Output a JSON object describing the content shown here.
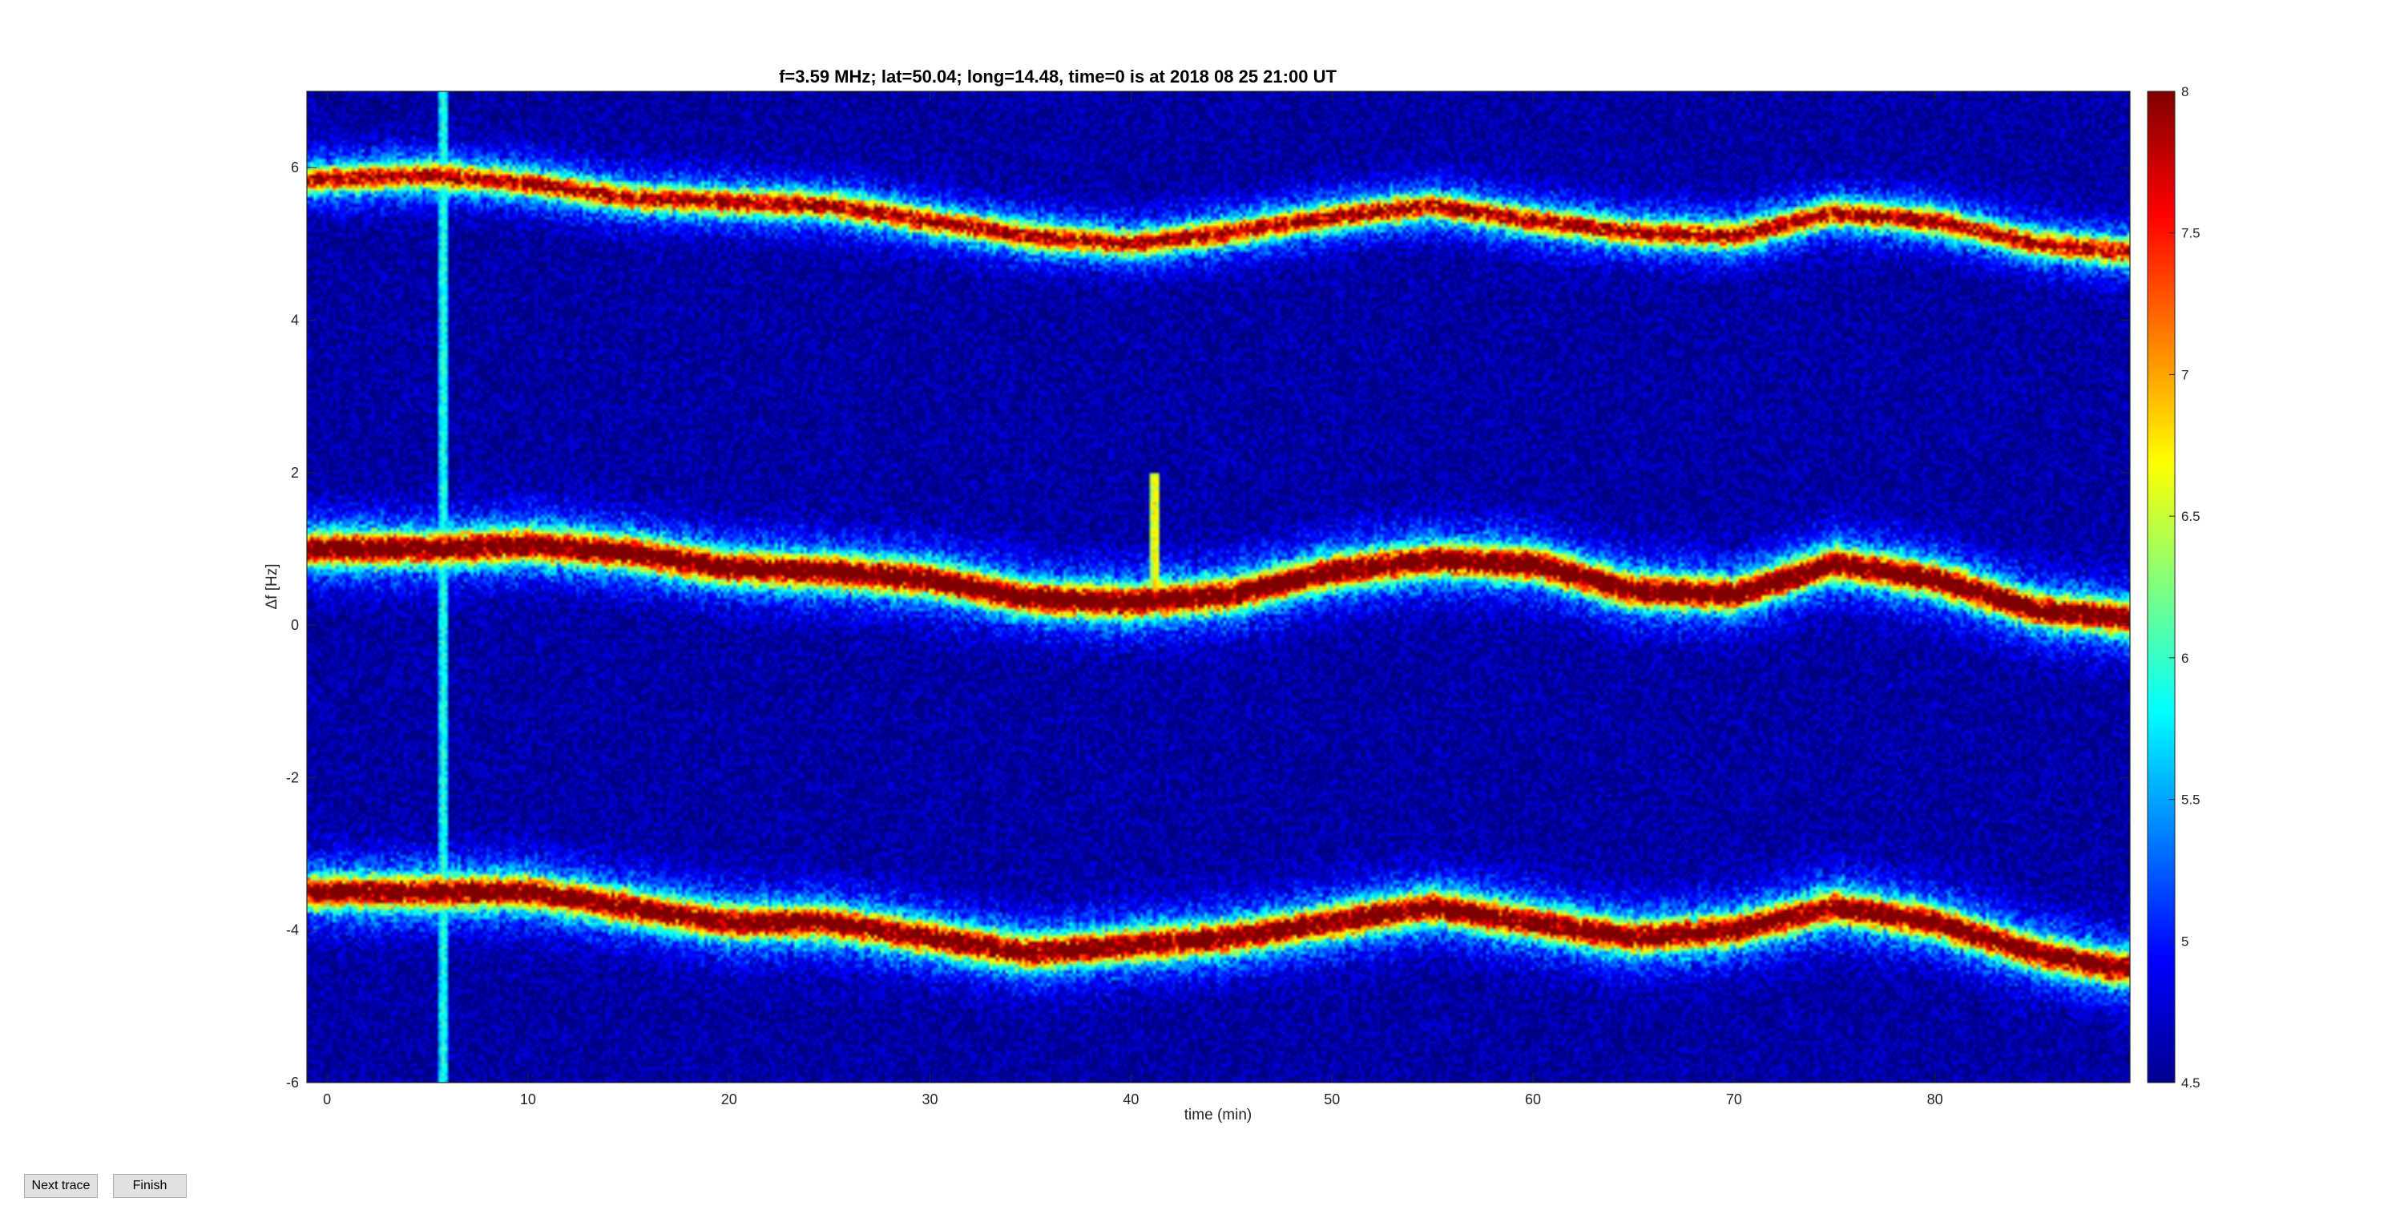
{
  "chart_data": {
    "type": "heatmap",
    "title": "f=3.59 MHz;  lat=50.04; long=14.48, time=0 is at 2018 08 25 21:00 UT",
    "xlabel": "time (min)",
    "ylabel": "Δf [Hz]",
    "xlim": [
      -1,
      89.7
    ],
    "ylim": [
      -6,
      7
    ],
    "xticks": [
      0,
      10,
      20,
      30,
      40,
      50,
      60,
      70,
      80
    ],
    "yticks": [
      -6,
      -4,
      -2,
      0,
      2,
      4,
      6
    ],
    "colorbar": {
      "range": [
        4.5,
        8
      ],
      "ticks": [
        4.5,
        5,
        5.5,
        6,
        6.5,
        7,
        7.5,
        8
      ],
      "colormap": "jet"
    },
    "background_level": 4.6,
    "traces": [
      {
        "time": [
          0,
          5,
          10,
          15,
          20,
          25,
          30,
          35,
          40,
          45,
          50,
          55,
          60,
          65,
          70,
          75,
          80,
          85,
          89
        ],
        "df": [
          5.85,
          5.9,
          5.8,
          5.6,
          5.55,
          5.5,
          5.3,
          5.1,
          5.0,
          5.15,
          5.35,
          5.5,
          5.3,
          5.15,
          5.1,
          5.4,
          5.3,
          5.0,
          4.9
        ],
        "peak": 7.2,
        "width": 0.35
      },
      {
        "time": [
          0,
          5,
          10,
          15,
          20,
          25,
          30,
          35,
          40,
          45,
          50,
          55,
          60,
          65,
          70,
          75,
          80,
          85,
          89
        ],
        "df": [
          1.0,
          1.0,
          1.05,
          0.95,
          0.75,
          0.7,
          0.6,
          0.35,
          0.3,
          0.4,
          0.7,
          0.85,
          0.8,
          0.45,
          0.4,
          0.8,
          0.6,
          0.2,
          0.1
        ],
        "peak": 7.9,
        "width": 0.45
      },
      {
        "time": [
          0,
          5,
          10,
          15,
          20,
          25,
          30,
          35,
          40,
          45,
          50,
          55,
          60,
          65,
          70,
          75,
          80,
          85,
          89
        ],
        "df": [
          -3.5,
          -3.5,
          -3.5,
          -3.7,
          -3.9,
          -3.9,
          -4.1,
          -4.3,
          -4.2,
          -4.1,
          -3.9,
          -3.7,
          -3.9,
          -4.1,
          -4.0,
          -3.7,
          -3.9,
          -4.3,
          -4.5
        ],
        "peak": 7.7,
        "width": 0.45
      }
    ],
    "vertical_artifacts": [
      {
        "time": 5.8,
        "df_range": [
          -6,
          7
        ],
        "level": 6.0
      },
      {
        "time": 41.2,
        "df_range": [
          0.2,
          2.0
        ],
        "level": 6.8
      }
    ]
  },
  "ui": {
    "next_trace_label": "Next trace",
    "finish_label": "Finish"
  }
}
